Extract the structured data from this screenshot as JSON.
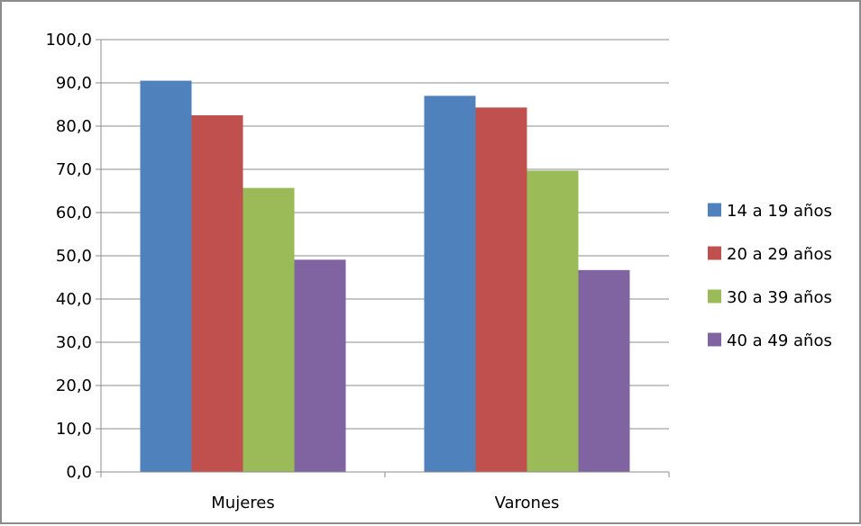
{
  "chart_data": {
    "type": "bar",
    "title": "",
    "xlabel": "",
    "ylabel": "",
    "categories": [
      "Mujeres",
      "Varones"
    ],
    "series": [
      {
        "name": "14 a 19 años",
        "values": [
          90.5,
          87.0
        ],
        "color": "#4f81bd"
      },
      {
        "name": "20 a 29 años",
        "values": [
          82.5,
          84.3
        ],
        "color": "#c0504d"
      },
      {
        "name": "30 a 39 años",
        "values": [
          65.7,
          69.7
        ],
        "color": "#9bbb59"
      },
      {
        "name": "40 a 49 años",
        "values": [
          49.1,
          46.7
        ],
        "color": "#8064a2"
      }
    ],
    "ylim": [
      0,
      100
    ],
    "yticks": [
      "0,0",
      "10,0",
      "20,0",
      "30,0",
      "40,0",
      "50,0",
      "60,0",
      "70,0",
      "80,0",
      "90,0",
      "100,0"
    ],
    "grid": true,
    "legend_position": "right"
  }
}
